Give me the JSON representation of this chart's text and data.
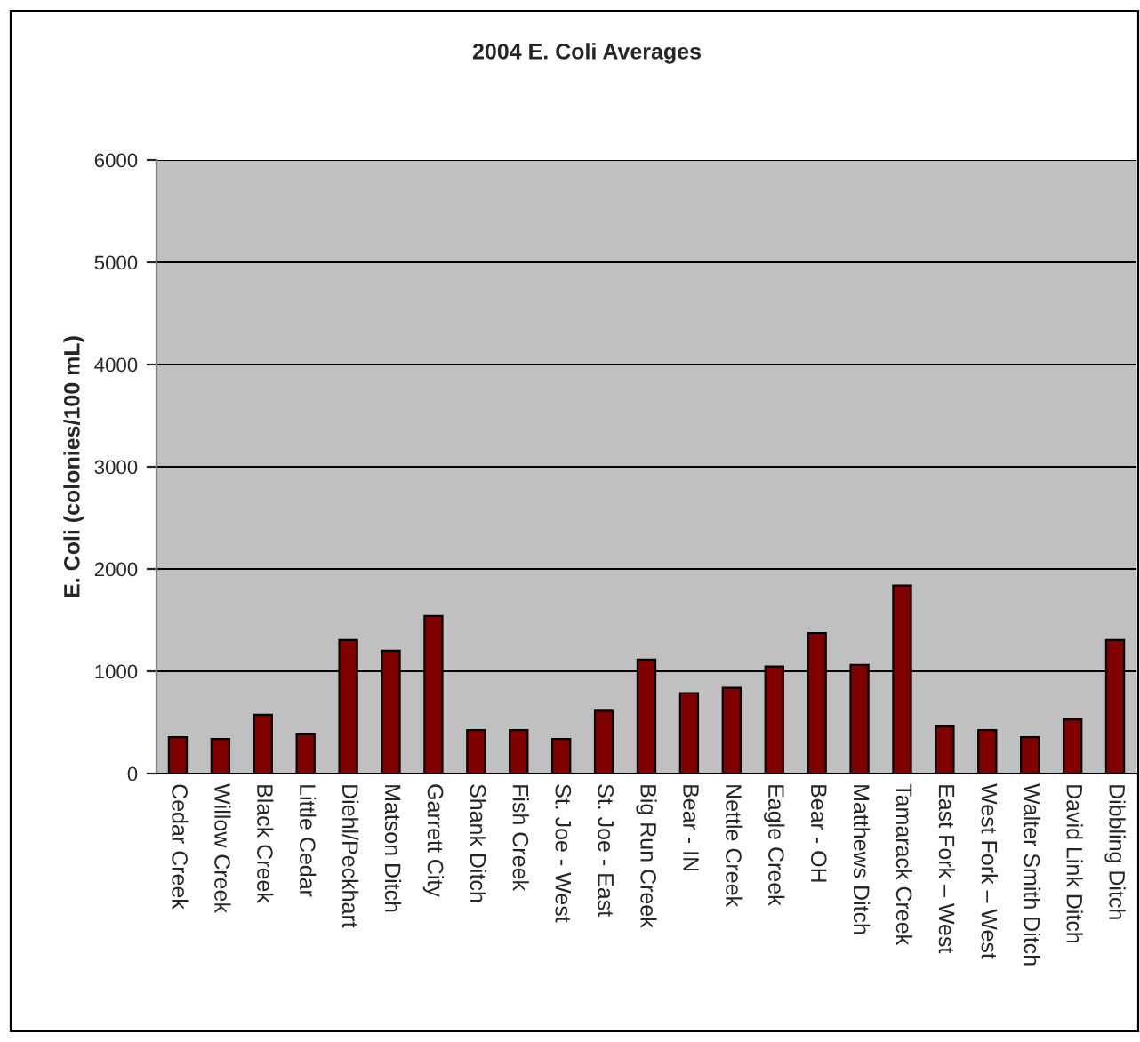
{
  "chart_data": {
    "type": "bar",
    "title": "2004 E. Coli Averages",
    "ylabel": "E. Coli (colonies/100 mL)",
    "categories": [
      "Cedar Creek",
      "Willow Creek",
      "Black Creek",
      "Little Cedar",
      "Diehl/Peckhart",
      "Matson Ditch",
      "Garrett City",
      "Shank Ditch",
      "Fish Creek",
      "St. Joe - West",
      "St. Joe - East",
      "Big Run Creek",
      "Bear - IN",
      "Nettle Creek",
      "Eagle Creek",
      "Bear - OH",
      "Matthews Ditch",
      "Tamarack Creek",
      "East Fork – West",
      "West Fork – West",
      "Walter Smith Ditch",
      "David Link Ditch",
      "Dibbling Ditch"
    ],
    "values": [
      356,
      339,
      575,
      385,
      1305,
      1201,
      1540,
      425,
      425,
      339,
      615,
      1115,
      787,
      839,
      1046,
      1374,
      1063,
      1839,
      460,
      425,
      356,
      529,
      1305
    ],
    "color": "#800000",
    "ylim": [
      0,
      6000
    ],
    "yticks": [
      0,
      1000,
      2000,
      3000,
      4000,
      5000,
      6000
    ],
    "grid": "y"
  }
}
